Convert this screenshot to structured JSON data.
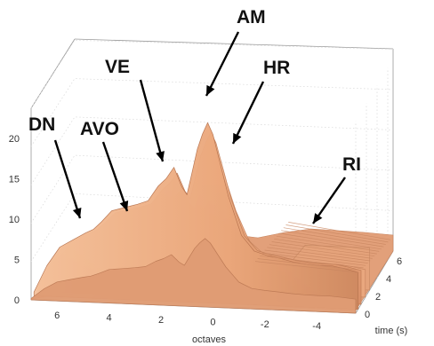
{
  "chart_data": {
    "type": "surface",
    "xlabel": "octaves",
    "ylabel": "time (s)",
    "zlabel": "",
    "x_ticks": [
      "6",
      "4",
      "2",
      "0",
      "-2",
      "-4"
    ],
    "y_ticks": [
      "0",
      "2",
      "4",
      "6"
    ],
    "z_ticks": [
      "0",
      "5",
      "10",
      "15",
      "20"
    ],
    "xlim": [
      -5.5,
      7
    ],
    "ylim": [
      0,
      7
    ],
    "zlim": [
      0,
      25
    ],
    "grid": true,
    "surface_color": "#e8a57a",
    "surface_shade_color": "#c9855e",
    "ridge_profile": {
      "name": "",
      "x": [
        7,
        6.5,
        6,
        5.5,
        5,
        4.7,
        4.4,
        4,
        3.5,
        3,
        2.6,
        2.2,
        1.9,
        1.6,
        1.3,
        1.1,
        0.9,
        0.7,
        0.5,
        0.3,
        0.1,
        -0.2,
        -0.5,
        -1,
        -1.5,
        -2,
        -2.5,
        -3,
        -3.5,
        -4,
        -4.5,
        -5,
        -5.5
      ],
      "z": [
        0.5,
        4,
        6.5,
        7.5,
        8.5,
        9,
        10,
        11.5,
        12,
        12.5,
        13,
        15,
        16,
        17.5,
        15,
        14,
        17,
        20,
        22,
        23.5,
        22,
        18,
        14,
        9,
        7,
        6.5,
        6.2,
        5.8,
        5.6,
        5.5,
        5.5,
        5.2,
        4.8
      ]
    },
    "annotations": [
      {
        "label": "DN"
      },
      {
        "label": "AVO"
      },
      {
        "label": "VE"
      },
      {
        "label": "AM"
      },
      {
        "label": "HR"
      },
      {
        "label": "RI"
      }
    ]
  }
}
